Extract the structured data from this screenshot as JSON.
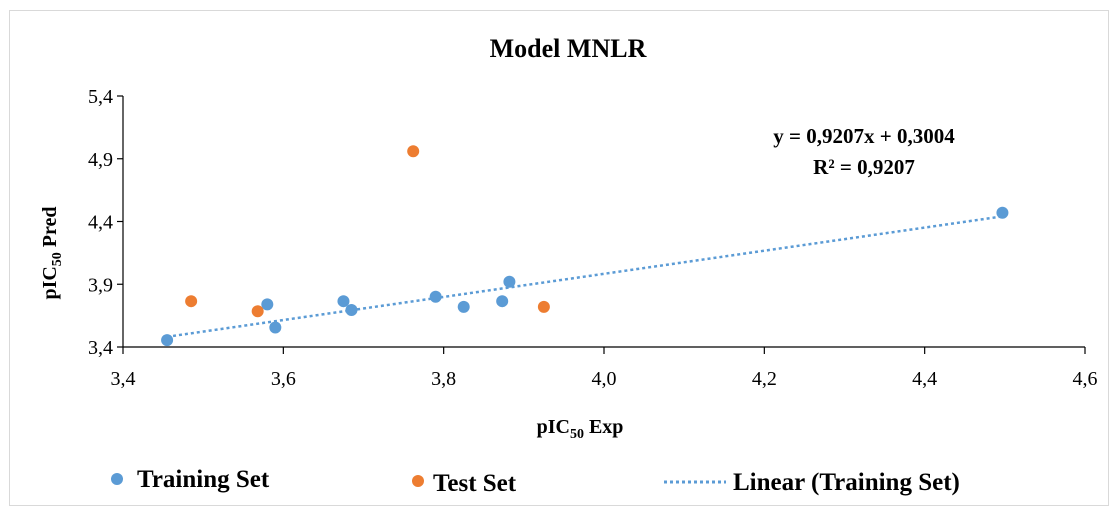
{
  "chart_data": {
    "type": "scatter",
    "title": "Model MNLR",
    "xlabel_main": "pIC",
    "xlabel_sub": "50",
    "xlabel_rest": " Exp",
    "ylabel_main": "pIC",
    "ylabel_sub": "50",
    "ylabel_rest": "  Pred",
    "xlim": [
      3.4,
      4.6
    ],
    "ylim": [
      3.4,
      5.4
    ],
    "x_ticks": [
      3.4,
      3.6,
      3.8,
      4.0,
      4.2,
      4.4,
      4.6
    ],
    "x_tick_labels": [
      "3,4",
      "3,6",
      "3,8",
      "4,0",
      "4,2",
      "4,4",
      "4,6"
    ],
    "y_ticks": [
      3.4,
      3.9,
      4.4,
      4.9,
      5.4
    ],
    "y_tick_labels": [
      "3,4",
      "3,9",
      "4,4",
      "4,9",
      "5,4"
    ],
    "series": [
      {
        "name": "Training Set",
        "color": "#5B9BD5",
        "points": [
          [
            3.455,
            3.455
          ],
          [
            3.58,
            3.74
          ],
          [
            3.59,
            3.555
          ],
          [
            3.675,
            3.765
          ],
          [
            3.685,
            3.695
          ],
          [
            3.79,
            3.8
          ],
          [
            3.825,
            3.72
          ],
          [
            3.873,
            3.765
          ],
          [
            3.882,
            3.92
          ],
          [
            4.497,
            4.47
          ]
        ]
      },
      {
        "name": "Test Set",
        "color": "#ED7D31",
        "points": [
          [
            3.485,
            3.765
          ],
          [
            3.568,
            3.685
          ],
          [
            3.762,
            4.96
          ],
          [
            3.925,
            3.72
          ]
        ]
      }
    ],
    "trendline": {
      "name": "Linear (Training Set)",
      "color": "#5B9BD5",
      "slope": 0.9207,
      "intercept": 0.3004,
      "x_range": [
        3.455,
        4.497
      ],
      "equation": "y = 0,9207x + 0,3004",
      "r2": "R² = 0,9207"
    },
    "legend_position": "bottom",
    "grid": false
  }
}
